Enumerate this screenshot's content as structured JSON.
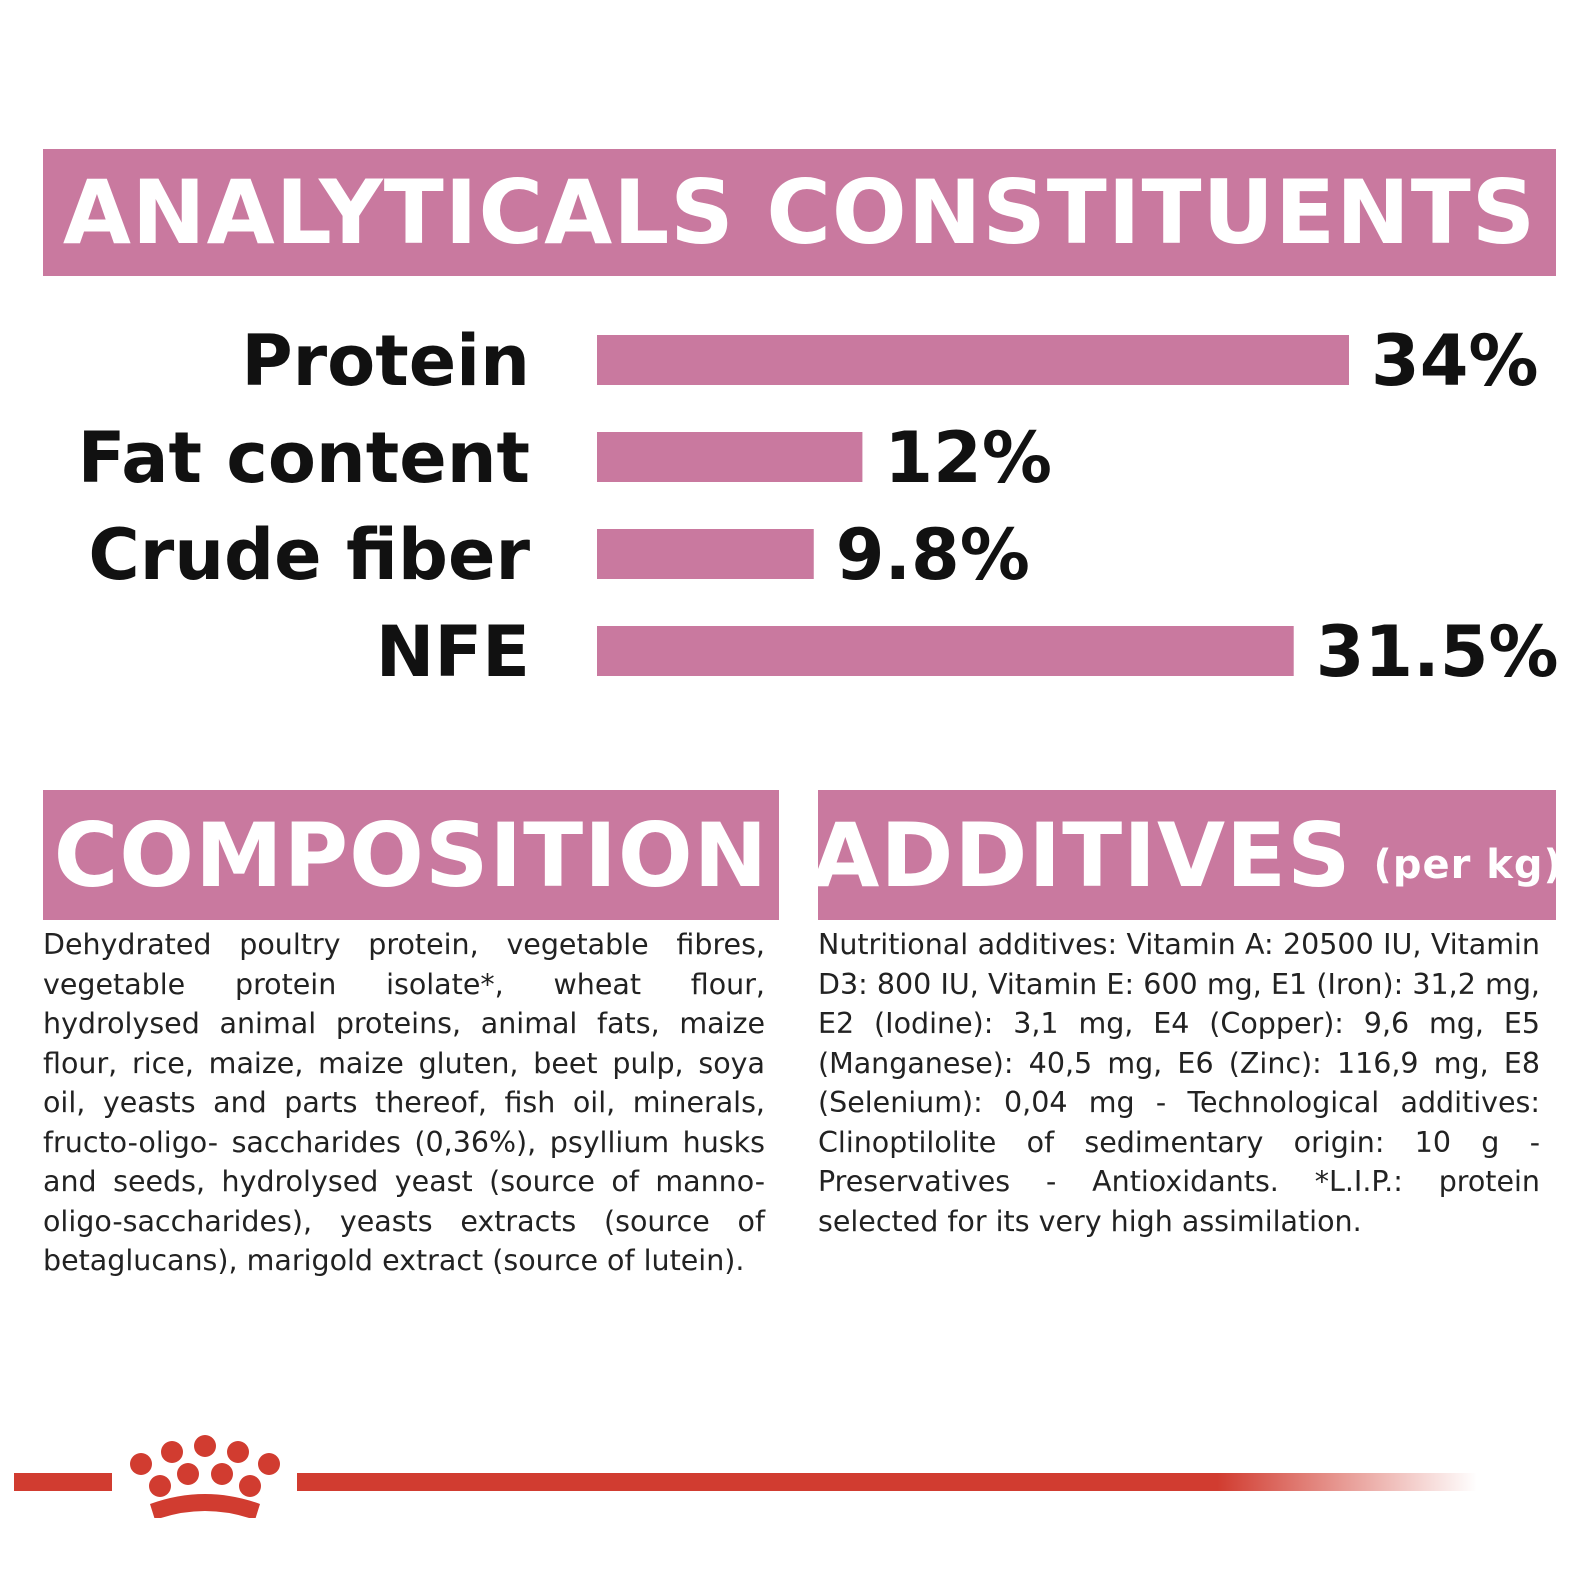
{
  "analytical": {
    "title": "ANALYTICALS CONSTITUENTS"
  },
  "colors": {
    "accent": "#c9799f",
    "brand_red": "#d13c30",
    "text": "#111111"
  },
  "chart_data": {
    "type": "bar",
    "orientation": "horizontal",
    "categories": [
      "Protein",
      "Fat content",
      "Crude fiber",
      "NFE"
    ],
    "values": [
      34,
      12,
      9.8,
      31.5
    ],
    "value_labels": [
      "34%",
      "12%",
      "9.8%",
      "31.5%"
    ],
    "unit": "%",
    "xlim": [
      0,
      34
    ],
    "grid": false,
    "legend": "none"
  },
  "composition": {
    "title": "COMPOSITION",
    "text": "Dehydrated poultry protein, vegetable fibres, vegetable protein isolate*, wheat flour, hydrolysed animal proteins, animal fats, maize flour, rice, maize, maize gluten, beet pulp, soya oil, yeasts and parts thereof, fish oil, minerals, fructo-oligo- saccharides (0,36%), psyllium husks and seeds, hydrolysed yeast (source of manno-oligo-saccharides), yeasts extracts (source of betaglucans), marigold extract (source of lutein)."
  },
  "additives": {
    "title": "ADDITIVES",
    "unit": "(per kg)",
    "text": "Nutritional additives: Vitamin A: 20500 IU, Vitamin D3: 800 IU, Vitamin E: 600 mg, E1 (Iron): 31,2 mg, E2 (Iodine): 3,1 mg, E4 (Copper): 9,6 mg, E5 (Manganese): 40,5 mg, E6 (Zinc): 116,9 mg, E8 (Selenium): 0,04 mg - Technological additives: Clinoptilolite of sedimentary origin: 10 g - Preservatives - Antioxidants. *L.I.P.: protein selected for its very high assimilation."
  },
  "footer": {
    "logo_icon": "crown-logo-icon"
  }
}
